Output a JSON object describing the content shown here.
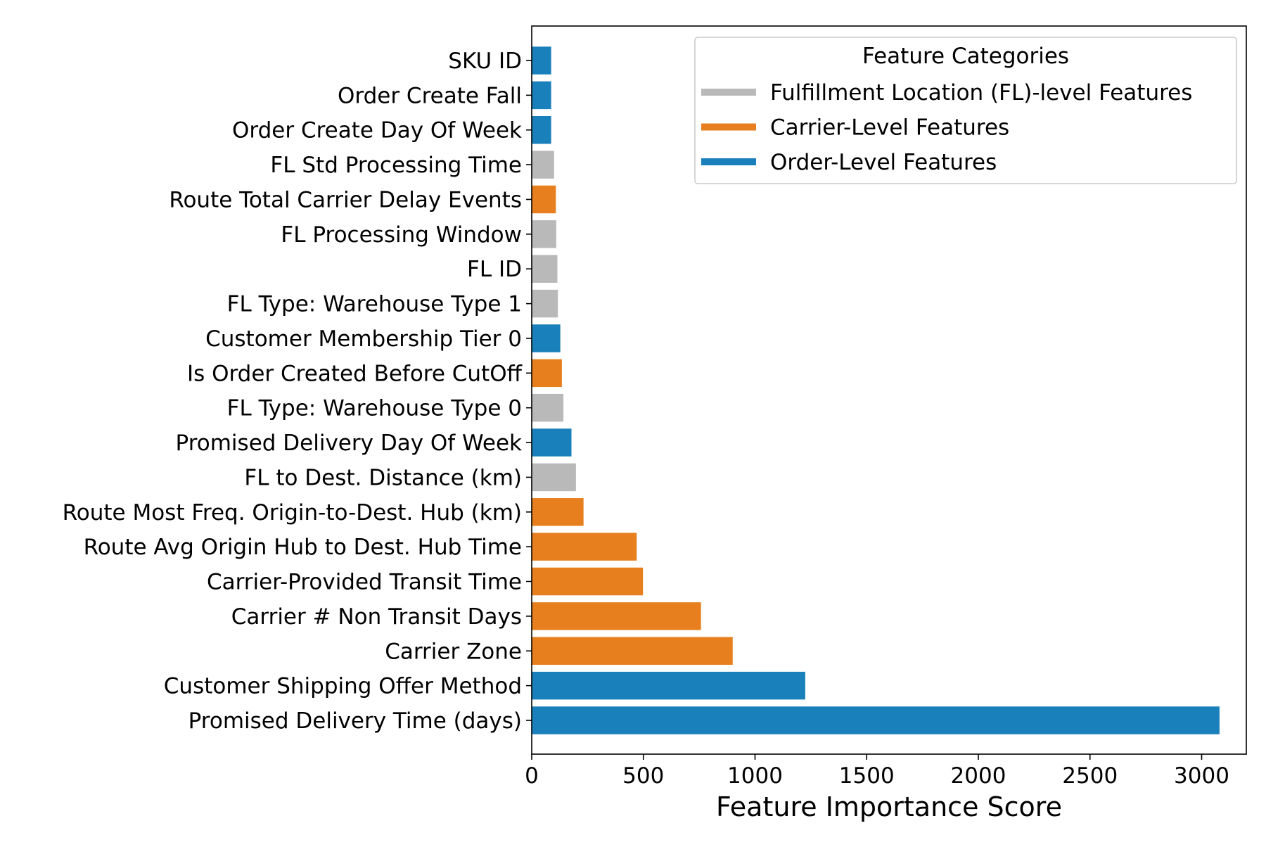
{
  "chart_data": {
    "type": "bar",
    "orientation": "horizontal",
    "title": "",
    "xlabel": "Feature Importance Score",
    "ylabel": "",
    "xlim": [
      0,
      3200
    ],
    "xticks": [
      0,
      500,
      1000,
      1500,
      2000,
      2500,
      3000
    ],
    "xtick_labels": [
      "0",
      "500",
      "1000",
      "1500",
      "2000",
      "2500",
      "3000"
    ],
    "categories": [
      "SKU ID",
      "Order Create Fall",
      "Order Create Day Of Week",
      "FL Std Processing Time",
      "Route Total Carrier Delay Events",
      "FL Processing Window",
      "FL ID",
      "FL Type: Warehouse Type 1",
      "Customer Membership Tier 0",
      "Is Order Created Before CutOff",
      "FL Type: Warehouse Type 0",
      "Promised Delivery Day Of Week",
      "FL to Dest. Distance (km)",
      "Route Most Freq. Origin-to-Dest. Hub (km)",
      "Route Avg Origin Hub to Dest. Hub Time",
      "Carrier-Provided Transit Time",
      "Carrier # Non Transit Days",
      "Carrier Zone",
      "Customer Shipping Offer Method",
      "Promised Delivery Time (days)"
    ],
    "values": [
      87,
      87,
      87,
      100,
      108,
      110,
      115,
      117,
      128,
      135,
      142,
      178,
      198,
      232,
      470,
      498,
      758,
      900,
      1225,
      3080
    ],
    "bar_groups": [
      "order",
      "order",
      "order",
      "fl",
      "carrier",
      "fl",
      "fl",
      "fl",
      "order",
      "carrier",
      "fl",
      "order",
      "fl",
      "carrier",
      "carrier",
      "carrier",
      "carrier",
      "carrier",
      "order",
      "order"
    ],
    "groups": {
      "fl": {
        "name": "Fulfillment Location (FL)-level Features",
        "color": "#b9b9b9"
      },
      "carrier": {
        "name": "Carrier-Level Features",
        "color": "#e87f1f"
      },
      "order": {
        "name": "Order-Level Features",
        "color": "#1a80bb"
      }
    },
    "legend": {
      "title": "Feature Categories",
      "placement": "top-right",
      "order": [
        "fl",
        "carrier",
        "order"
      ]
    },
    "grid": false
  }
}
